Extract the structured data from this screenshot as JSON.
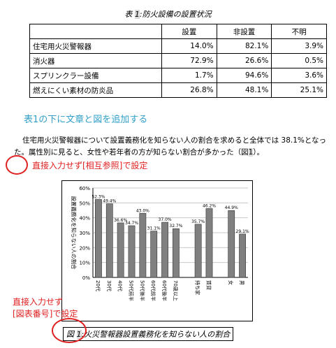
{
  "table": {
    "caption_prefix": "表 ",
    "caption_num": "1",
    "caption_text": ":防火設備の設置状況",
    "headers": [
      "",
      "設置",
      "非設置",
      "不明"
    ],
    "rows": [
      {
        "label": "住宅用火災警報器",
        "values": [
          "14.0%",
          "82.1%",
          "3.9%"
        ]
      },
      {
        "label": "消火器",
        "values": [
          "72.9%",
          "26.6%",
          "0.5%"
        ]
      },
      {
        "label": "スプリンクラー設備",
        "values": [
          "1.7%",
          "94.6%",
          "3.6%"
        ]
      },
      {
        "label": "燃えにくい素材の防炎品",
        "values": [
          "26.8%",
          "48.1%",
          "25.1%"
        ]
      }
    ]
  },
  "heading_note": "表1の下に文章と図を追加する",
  "paragraph": {
    "text": "住宅用火災警報器について設置義務化を知らない人の割合を求めると全体では 38.1%となった。属性別に見ると、女性や若年者の方が知らない割合が多かった（図",
    "ref": "1",
    "tail": "）。"
  },
  "note_crossref": "直接入力せず[相互参照]で設定",
  "note_caption_line1": "直接入力せず",
  "note_caption_line2": "[図表番号]で設定",
  "figure_caption": {
    "prefix": "図 ",
    "num": "1",
    "text": ":火災警報器設置義務化を知らない人の割合"
  },
  "chart_data": {
    "type": "bar",
    "ylabel": "設置義務化を知らない人の割合",
    "ylim": [
      0,
      60
    ],
    "yticks": [
      "0%",
      "10%",
      "20%",
      "30%",
      "40%",
      "50%",
      "60%"
    ],
    "grid": true,
    "bar_color": "#808080",
    "categories": [
      "20代",
      "30代",
      "40代",
      "50代前半",
      "50代後半",
      "60代前半",
      "60代後半",
      "70歳以上",
      "",
      "持ち家",
      "賃貸",
      "",
      "女",
      "男"
    ],
    "values": [
      52.3,
      49.4,
      36.6,
      34.7,
      43.0,
      31.1,
      37.0,
      32.7,
      null,
      35.7,
      46.2,
      null,
      44.9,
      29.1
    ],
    "data_labels": [
      "52.3%",
      "49.4%",
      "36.6%",
      "34.7%",
      "43.0%",
      "31.1%",
      "37.0%",
      "32.7%",
      "",
      "35.7%",
      "46.2%",
      "",
      "44.9%",
      "29.1%"
    ]
  },
  "colors": {
    "annotation": "#e02020",
    "heading": "#31a0c8"
  }
}
